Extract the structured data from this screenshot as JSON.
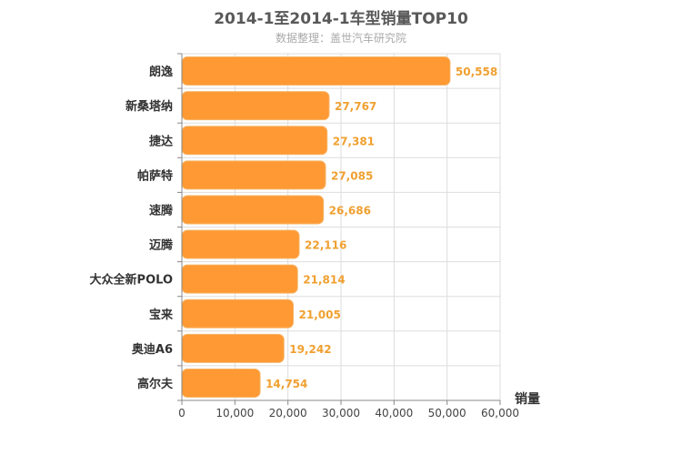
{
  "chart_data": {
    "type": "bar",
    "orientation": "horizontal",
    "title": "2014-1至2014-1车型销量TOP10",
    "subtitle": "数据整理：盖世汽车研究院",
    "categories": [
      "朗逸",
      "新桑塔纳",
      "捷达",
      "帕萨特",
      "速腾",
      "迈腾",
      "大众全新POLO",
      "宝来",
      "奥迪A6",
      "高尔夫"
    ],
    "values": [
      50558,
      27767,
      27381,
      27085,
      26686,
      22116,
      21814,
      21005,
      19242,
      14754
    ],
    "value_labels": [
      "50,558",
      "27,767",
      "27,381",
      "27,085",
      "26,686",
      "22,116",
      "21,814",
      "21,005",
      "19,242",
      "14,754"
    ],
    "xlabel": "销量",
    "ylabel": "",
    "xlim": [
      0,
      60000
    ],
    "ticks": [
      0,
      10000,
      20000,
      30000,
      40000,
      50000,
      60000
    ],
    "tick_labels": [
      "0",
      "10,000",
      "20,000",
      "30,000",
      "40,000",
      "50,000",
      "60,000"
    ],
    "grid": true,
    "bar_color": "#ff9933",
    "value_label_color": "#f0a030"
  }
}
